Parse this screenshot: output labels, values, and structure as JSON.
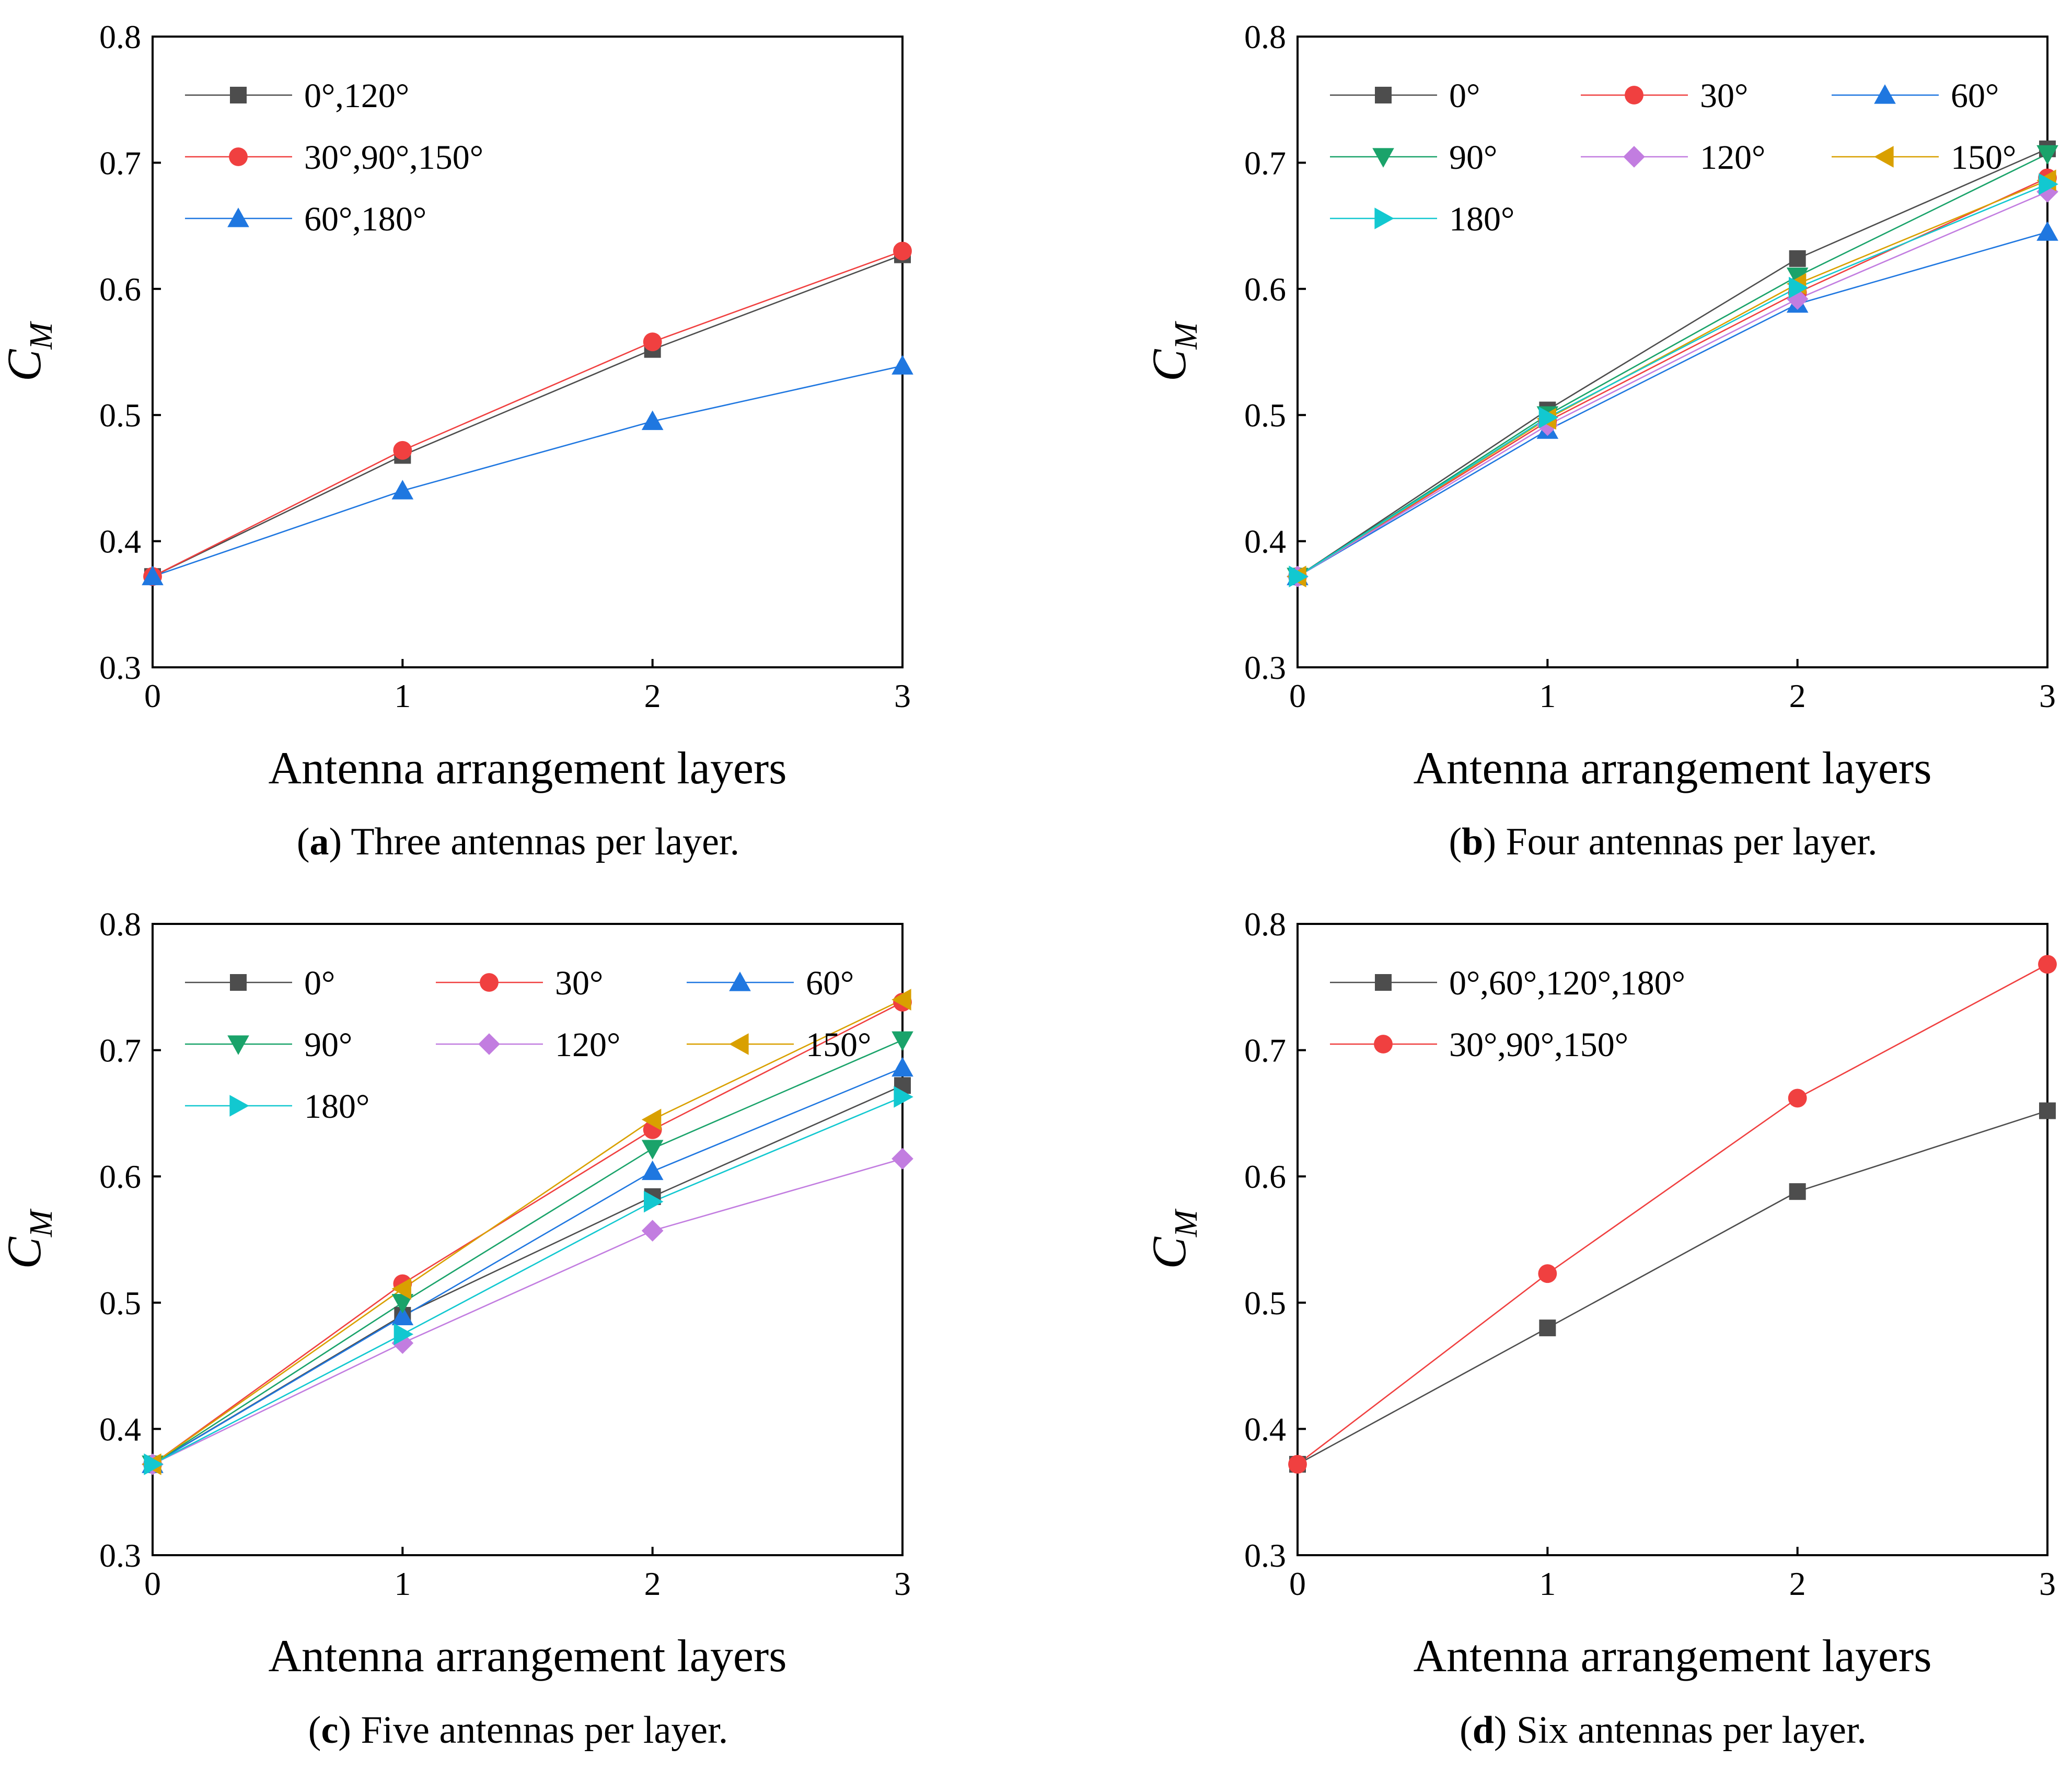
{
  "chart_data": [
    {
      "type": "line",
      "panel_letter": "a",
      "caption": "Three antennas per layer.",
      "xlabel": "Antenna arrangement layers",
      "ylabel_main": "C",
      "ylabel_sub": "M",
      "x": [
        0,
        1,
        2,
        3
      ],
      "xlim": [
        0,
        3
      ],
      "ylim": [
        0.3,
        0.8
      ],
      "xticks": [
        "0",
        "1",
        "2",
        "3"
      ],
      "yticks": [
        "0.3",
        "0.4",
        "0.5",
        "0.6",
        "0.7",
        "0.8"
      ],
      "legend_position": "top-left",
      "legend_columns": 1,
      "series": [
        {
          "name": "0°,120°",
          "color": "#4d4d4d",
          "marker": "square",
          "values": [
            0.372,
            0.468,
            0.552,
            0.627
          ]
        },
        {
          "name": "30°,90°,150°",
          "color": "#f04040",
          "marker": "circle",
          "values": [
            0.372,
            0.472,
            0.558,
            0.63
          ]
        },
        {
          "name": "60°,180°",
          "color": "#1f77e0",
          "marker": "triangle-up",
          "values": [
            0.372,
            0.44,
            0.495,
            0.539
          ]
        }
      ]
    },
    {
      "type": "line",
      "panel_letter": "b",
      "caption": "Four antennas per layer.",
      "xlabel": "Antenna arrangement layers",
      "ylabel_main": "C",
      "ylabel_sub": "M",
      "x": [
        0,
        1,
        2,
        3
      ],
      "xlim": [
        0,
        3
      ],
      "ylim": [
        0.3,
        0.8
      ],
      "xticks": [
        "0",
        "1",
        "2",
        "3"
      ],
      "yticks": [
        "0.3",
        "0.4",
        "0.5",
        "0.6",
        "0.7",
        "0.8"
      ],
      "legend_position": "top-left",
      "legend_columns": 3,
      "series": [
        {
          "name": "0°",
          "color": "#4d4d4d",
          "marker": "square",
          "values": [
            0.372,
            0.504,
            0.624,
            0.711
          ]
        },
        {
          "name": "30°",
          "color": "#f04040",
          "marker": "circle",
          "values": [
            0.372,
            0.495,
            0.597,
            0.688
          ]
        },
        {
          "name": "60°",
          "color": "#1f77e0",
          "marker": "triangle-up",
          "values": [
            0.372,
            0.488,
            0.588,
            0.645
          ]
        },
        {
          "name": "90°",
          "color": "#1aa36a",
          "marker": "triangle-down",
          "values": [
            0.372,
            0.5,
            0.61,
            0.707
          ]
        },
        {
          "name": "120°",
          "color": "#c27de0",
          "marker": "diamond",
          "values": [
            0.372,
            0.492,
            0.592,
            0.677
          ]
        },
        {
          "name": "150°",
          "color": "#d9a000",
          "marker": "triangle-left",
          "values": [
            0.372,
            0.497,
            0.604,
            0.686
          ]
        },
        {
          "name": "180°",
          "color": "#12c8d0",
          "marker": "triangle-right",
          "values": [
            0.372,
            0.498,
            0.601,
            0.683
          ]
        }
      ]
    },
    {
      "type": "line",
      "panel_letter": "c",
      "caption": "Five antennas per layer.",
      "xlabel": "Antenna arrangement layers",
      "ylabel_main": "C",
      "ylabel_sub": "M",
      "x": [
        0,
        1,
        2,
        3
      ],
      "xlim": [
        0,
        3
      ],
      "ylim": [
        0.3,
        0.8
      ],
      "xticks": [
        "0",
        "1",
        "2",
        "3"
      ],
      "yticks": [
        "0.3",
        "0.4",
        "0.5",
        "0.6",
        "0.7",
        "0.8"
      ],
      "legend_position": "top-left",
      "legend_columns": 3,
      "series": [
        {
          "name": "0°",
          "color": "#4d4d4d",
          "marker": "square",
          "values": [
            0.372,
            0.49,
            0.584,
            0.672
          ]
        },
        {
          "name": "30°",
          "color": "#f04040",
          "marker": "circle",
          "values": [
            0.372,
            0.515,
            0.637,
            0.738
          ]
        },
        {
          "name": "60°",
          "color": "#1f77e0",
          "marker": "triangle-up",
          "values": [
            0.372,
            0.489,
            0.604,
            0.686
          ]
        },
        {
          "name": "90°",
          "color": "#1aa36a",
          "marker": "triangle-down",
          "values": [
            0.372,
            0.5,
            0.622,
            0.708
          ]
        },
        {
          "name": "120°",
          "color": "#c27de0",
          "marker": "diamond",
          "values": [
            0.372,
            0.468,
            0.557,
            0.614
          ]
        },
        {
          "name": "150°",
          "color": "#d9a000",
          "marker": "triangle-left",
          "values": [
            0.372,
            0.511,
            0.645,
            0.74
          ]
        },
        {
          "name": "180°",
          "color": "#12c8d0",
          "marker": "triangle-right",
          "values": [
            0.372,
            0.475,
            0.58,
            0.663
          ]
        }
      ]
    },
    {
      "type": "line",
      "panel_letter": "d",
      "caption": "Six antennas per layer.",
      "xlabel": "Antenna arrangement layers",
      "ylabel_main": "C",
      "ylabel_sub": "M",
      "x": [
        0,
        1,
        2,
        3
      ],
      "xlim": [
        0,
        3
      ],
      "ylim": [
        0.3,
        0.8
      ],
      "xticks": [
        "0",
        "1",
        "2",
        "3"
      ],
      "yticks": [
        "0.3",
        "0.4",
        "0.5",
        "0.6",
        "0.7",
        "0.8"
      ],
      "legend_position": "top-left",
      "legend_columns": 1,
      "series": [
        {
          "name": "0°,60°,120°,180°",
          "color": "#4d4d4d",
          "marker": "square",
          "values": [
            0.372,
            0.48,
            0.588,
            0.652
          ]
        },
        {
          "name": "30°,90°,150°",
          "color": "#f04040",
          "marker": "circle",
          "values": [
            0.372,
            0.523,
            0.662,
            0.768
          ]
        }
      ]
    }
  ]
}
